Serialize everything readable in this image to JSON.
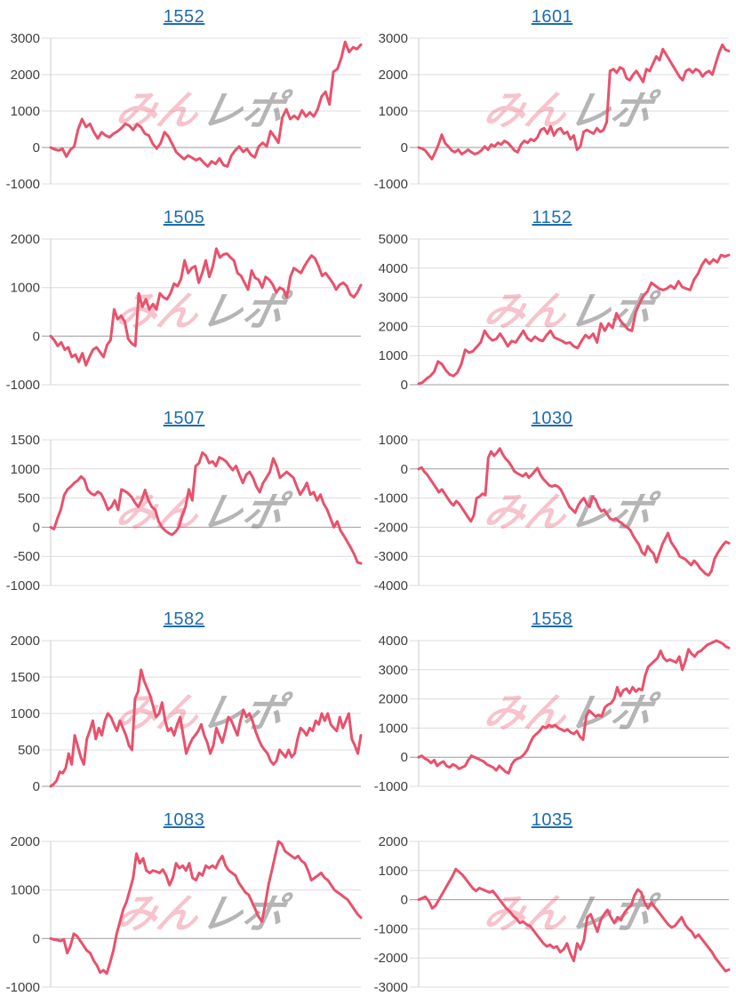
{
  "page": {
    "background": "#ffffff"
  },
  "style": {
    "line": "#e8516c",
    "grid_line": "#dcdcdc",
    "zero_line": "#9b9b9b",
    "axis_line": "#cccccc",
    "tick_label": "#404040",
    "title_link": "#1e6bb0",
    "watermark_pink": "rgba(231,84,109,0.35)",
    "watermark_gray": "rgba(120,120,120,0.55)"
  },
  "watermark": {
    "pink_text": "みん",
    "gray_text": "レポ"
  },
  "chart_data": [
    {
      "type": "line",
      "title": "1552",
      "xlabel": "",
      "ylabel": "",
      "ylim": [
        -1000,
        3000
      ],
      "ytick_step": 1000,
      "grid": "on",
      "legend": "none",
      "values": [
        0,
        -50,
        -80,
        -40,
        -250,
        -60,
        30,
        500,
        780,
        560,
        650,
        420,
        250,
        420,
        330,
        280,
        380,
        440,
        530,
        650,
        600,
        480,
        640,
        560,
        380,
        330,
        100,
        -30,
        120,
        420,
        300,
        90,
        -130,
        -230,
        -320,
        -220,
        -280,
        -350,
        -300,
        -420,
        -520,
        -380,
        -450,
        -300,
        -480,
        -520,
        -230,
        -80,
        30,
        -120,
        -40,
        -200,
        -270,
        30,
        130,
        30,
        450,
        300,
        130,
        820,
        1050,
        780,
        870,
        780,
        1020,
        850,
        960,
        850,
        1050,
        1400,
        1530,
        1180,
        2080,
        2150,
        2450,
        2900,
        2620,
        2750,
        2700,
        2820
      ]
    },
    {
      "type": "line",
      "title": "1601",
      "xlabel": "",
      "ylabel": "",
      "ylim": [
        -1000,
        3000
      ],
      "ytick_step": 1000,
      "grid": "on",
      "legend": "none",
      "values": [
        0,
        -30,
        -80,
        -200,
        -320,
        -130,
        80,
        350,
        120,
        30,
        -80,
        -130,
        -60,
        -180,
        -130,
        -60,
        -130,
        -180,
        -150,
        -80,
        30,
        -60,
        80,
        30,
        130,
        80,
        180,
        130,
        30,
        -80,
        -130,
        80,
        180,
        130,
        230,
        180,
        280,
        480,
        530,
        380,
        580,
        330,
        480,
        530,
        380,
        430,
        230,
        330,
        -60,
        30,
        430,
        480,
        430,
        380,
        530,
        430,
        480,
        700,
        2100,
        2150,
        2050,
        2200,
        2150,
        1900,
        1850,
        2000,
        2100,
        1950,
        1800,
        2150,
        2100,
        2300,
        2500,
        2400,
        2700,
        2550,
        2400,
        2250,
        2100,
        1950,
        1850,
        2100,
        2150,
        2050,
        2150,
        2100,
        1950,
        2050,
        2100,
        2000,
        2300,
        2600,
        2820,
        2680,
        2650
      ]
    },
    {
      "type": "line",
      "title": "1505",
      "xlabel": "",
      "ylabel": "",
      "ylim": [
        -1000,
        2000
      ],
      "ytick_step": 1000,
      "grid": "on",
      "legend": "none",
      "values": [
        0,
        -80,
        -200,
        -130,
        -280,
        -230,
        -430,
        -380,
        -530,
        -350,
        -600,
        -430,
        -280,
        -230,
        -330,
        -430,
        -180,
        -80,
        550,
        350,
        420,
        300,
        -60,
        -150,
        -200,
        880,
        600,
        760,
        550,
        660,
        550,
        880,
        800,
        760,
        880,
        1080,
        1030,
        1180,
        1560,
        1300,
        1400,
        1440,
        1100,
        1300,
        1560,
        1220,
        1440,
        1800,
        1620,
        1680,
        1700,
        1620,
        1560,
        1300,
        1240,
        1100,
        960,
        1350,
        1200,
        1160,
        1000,
        1220,
        1160,
        1060,
        900,
        1000,
        960,
        800,
        1220,
        1400,
        1350,
        1300,
        1440,
        1560,
        1660,
        1600,
        1440,
        1240,
        1300,
        1200,
        1100,
        960,
        1060,
        1100,
        1030,
        860,
        800,
        900,
        1050
      ]
    },
    {
      "type": "line",
      "title": "1152",
      "xlabel": "",
      "ylabel": "",
      "ylim": [
        0,
        5000
      ],
      "ytick_step": 1000,
      "grid": "on",
      "legend": "none",
      "values": [
        30,
        80,
        200,
        300,
        450,
        800,
        700,
        500,
        350,
        300,
        420,
        700,
        1200,
        1100,
        1150,
        1300,
        1450,
        1850,
        1650,
        1520,
        1570,
        1750,
        1550,
        1320,
        1500,
        1450,
        1650,
        1850,
        1600,
        1500,
        1650,
        1550,
        1500,
        1700,
        1850,
        1620,
        1560,
        1500,
        1420,
        1450,
        1320,
        1260,
        1500,
        1700,
        1600,
        1750,
        1450,
        2100,
        1850,
        2100,
        1950,
        2450,
        2200,
        2050,
        1900,
        1850,
        2500,
        2800,
        3050,
        3200,
        3500,
        3400,
        3300,
        3250,
        3300,
        3400,
        3300,
        3550,
        3350,
        3300,
        3250,
        3600,
        3800,
        4100,
        4300,
        4150,
        4300,
        4200,
        4450,
        4400,
        4450
      ]
    },
    {
      "type": "line",
      "title": "1507",
      "xlabel": "",
      "ylabel": "",
      "ylim": [
        -1000,
        1500
      ],
      "ytick_step": 500,
      "grid": "on",
      "legend": "none",
      "values": [
        0,
        -30,
        150,
        300,
        550,
        650,
        700,
        760,
        800,
        870,
        820,
        640,
        580,
        550,
        610,
        570,
        450,
        300,
        350,
        460,
        300,
        650,
        620,
        580,
        520,
        420,
        350,
        460,
        640,
        460,
        350,
        300,
        100,
        0,
        -60,
        -100,
        -130,
        -80,
        0,
        200,
        350,
        650,
        460,
        1050,
        1100,
        1280,
        1230,
        1100,
        1130,
        1050,
        1200,
        1170,
        1130,
        1050,
        980,
        1050,
        900,
        760,
        900,
        950,
        850,
        700,
        600,
        760,
        850,
        950,
        1180,
        1050,
        850,
        900,
        950,
        900,
        850,
        700,
        560,
        650,
        760,
        560,
        600,
        460,
        560,
        400,
        300,
        150,
        0,
        100,
        -60,
        -150,
        -250,
        -350,
        -460,
        -600,
        -620
      ]
    },
    {
      "type": "line",
      "title": "1030",
      "xlabel": "",
      "ylabel": "",
      "ylim": [
        -4000,
        1000
      ],
      "ytick_step": 1000,
      "grid": "on",
      "legend": "none",
      "values": [
        0,
        50,
        -100,
        -200,
        -350,
        -500,
        -650,
        -800,
        -700,
        -850,
        -1000,
        -1150,
        -1250,
        -1100,
        -1200,
        -1350,
        -1500,
        -1650,
        -1800,
        -1600,
        -1000,
        -950,
        -850,
        -900,
        380,
        600,
        450,
        560,
        700,
        500,
        350,
        250,
        100,
        -80,
        -150,
        -200,
        -250,
        -150,
        -300,
        -200,
        -80,
        30,
        -200,
        -350,
        -450,
        -560,
        -600,
        -560,
        -600,
        -700,
        -900,
        -1100,
        -1300,
        -1400,
        -1500,
        -1250,
        -1100,
        -1000,
        -1200,
        -1300,
        -950,
        -1050,
        -1300,
        -1450,
        -1400,
        -1550,
        -1700,
        -1750,
        -1700,
        -1800,
        -1850,
        -1950,
        -2000,
        -2100,
        -2300,
        -2450,
        -2600,
        -2850,
        -2950,
        -2650,
        -2800,
        -2900,
        -3200,
        -2900,
        -2600,
        -2400,
        -2200,
        -2500,
        -2650,
        -2800,
        -3000,
        -3050,
        -3100,
        -3200,
        -3300,
        -3150,
        -3250,
        -3400,
        -3500,
        -3600,
        -3650,
        -3500,
        -3100,
        -2900,
        -2750,
        -2600,
        -2500,
        -2550
      ]
    },
    {
      "type": "line",
      "title": "1582",
      "xlabel": "",
      "ylabel": "",
      "ylim": [
        0,
        2000
      ],
      "ytick_step": 500,
      "grid": "on",
      "legend": "none",
      "values": [
        0,
        30,
        80,
        200,
        180,
        250,
        450,
        300,
        700,
        550,
        400,
        300,
        650,
        760,
        900,
        650,
        800,
        700,
        900,
        1000,
        950,
        850,
        760,
        900,
        800,
        700,
        560,
        500,
        1200,
        1300,
        1600,
        1450,
        1350,
        1250,
        1100,
        950,
        1000,
        1150,
        900,
        760,
        800,
        700,
        850,
        950,
        700,
        450,
        560,
        650,
        700,
        760,
        850,
        700,
        600,
        450,
        560,
        800,
        700,
        600,
        760,
        950,
        900,
        800,
        700,
        900,
        1050,
        950,
        1000,
        900,
        760,
        650,
        560,
        500,
        450,
        350,
        300,
        350,
        500,
        450,
        400,
        500,
        400,
        450,
        650,
        800,
        760,
        700,
        800,
        760,
        900,
        850,
        1000,
        900,
        1000,
        850,
        800,
        760,
        950,
        800,
        900,
        1000,
        650,
        560,
        450,
        700
      ]
    },
    {
      "type": "line",
      "title": "1558",
      "xlabel": "",
      "ylabel": "",
      "ylim": [
        -1000,
        4000
      ],
      "ytick_step": 1000,
      "grid": "on",
      "legend": "none",
      "values": [
        0,
        50,
        -50,
        -100,
        -200,
        -100,
        -300,
        -200,
        -150,
        -300,
        -350,
        -250,
        -300,
        -400,
        -350,
        -300,
        -100,
        50,
        0,
        -50,
        -100,
        -150,
        -250,
        -300,
        -350,
        -450,
        -300,
        -400,
        -500,
        -550,
        -250,
        -100,
        -50,
        0,
        100,
        250,
        500,
        700,
        800,
        900,
        1050,
        1000,
        1100,
        1050,
        1100,
        1000,
        950,
        900,
        950,
        850,
        800,
        900,
        700,
        600,
        1400,
        1600,
        1500,
        1400,
        1450,
        1400,
        1700,
        1800,
        1850,
        2000,
        2400,
        2100,
        2300,
        2350,
        2200,
        2400,
        2250,
        2350,
        2300,
        2800,
        3100,
        3200,
        3300,
        3400,
        3650,
        3400,
        3300,
        3350,
        3300,
        3250,
        3450,
        3000,
        3300,
        3700,
        3550,
        3450,
        3600,
        3650,
        3750,
        3850,
        3900,
        3950,
        4000,
        3950,
        3900,
        3800,
        3750
      ]
    },
    {
      "type": "line",
      "title": "1083",
      "xlabel": "",
      "ylabel": "",
      "ylim": [
        -1000,
        2000
      ],
      "ytick_step": 1000,
      "grid": "on",
      "legend": "none",
      "values": [
        0,
        -20,
        -30,
        -50,
        -20,
        -300,
        -150,
        100,
        50,
        -50,
        -150,
        -250,
        -300,
        -450,
        -550,
        -700,
        -650,
        -720,
        -500,
        -250,
        100,
        350,
        600,
        760,
        1000,
        1250,
        1750,
        1550,
        1650,
        1400,
        1350,
        1400,
        1380,
        1350,
        1420,
        1300,
        1100,
        1250,
        1550,
        1450,
        1500,
        1400,
        1550,
        1250,
        1200,
        1350,
        1300,
        1500,
        1450,
        1500,
        1450,
        1600,
        1700,
        1500,
        1400,
        1350,
        1300,
        1150,
        1050,
        950,
        900,
        750,
        600,
        450,
        350,
        700,
        1100,
        1400,
        1700,
        2000,
        1950,
        1800,
        1750,
        1700,
        1650,
        1700,
        1600,
        1550,
        1400,
        1200,
        1250,
        1300,
        1350,
        1250,
        1200,
        1100,
        1000,
        950,
        900,
        850,
        800,
        700,
        600,
        500,
        430
      ]
    },
    {
      "type": "line",
      "title": "1035",
      "xlabel": "",
      "ylabel": "",
      "ylim": [
        -3000,
        2000
      ],
      "ytick_step": 1000,
      "grid": "on",
      "legend": "none",
      "values": [
        0,
        50,
        100,
        -50,
        -300,
        -200,
        0,
        200,
        400,
        600,
        800,
        1050,
        950,
        850,
        700,
        550,
        400,
        300,
        400,
        350,
        300,
        250,
        300,
        150,
        0,
        -150,
        -300,
        -400,
        -550,
        -650,
        -800,
        -750,
        -850,
        -900,
        -1050,
        -1200,
        -1350,
        -1500,
        -1600,
        -1550,
        -1650,
        -1600,
        -1800,
        -1700,
        -1500,
        -1850,
        -2100,
        -1500,
        -1700,
        -1400,
        -600,
        -500,
        -800,
        -1100,
        -700,
        -500,
        -350,
        -600,
        -800,
        -600,
        -700,
        -450,
        -300,
        -200,
        150,
        350,
        250,
        -100,
        -300,
        -100,
        -250,
        -400,
        -550,
        -700,
        -850,
        -950,
        -900,
        -750,
        -600,
        -850,
        -1000,
        -1100,
        -1300,
        -1200,
        -1350,
        -1500,
        -1650,
        -1800,
        -2000,
        -2150,
        -2300,
        -2450,
        -2400
      ]
    }
  ]
}
